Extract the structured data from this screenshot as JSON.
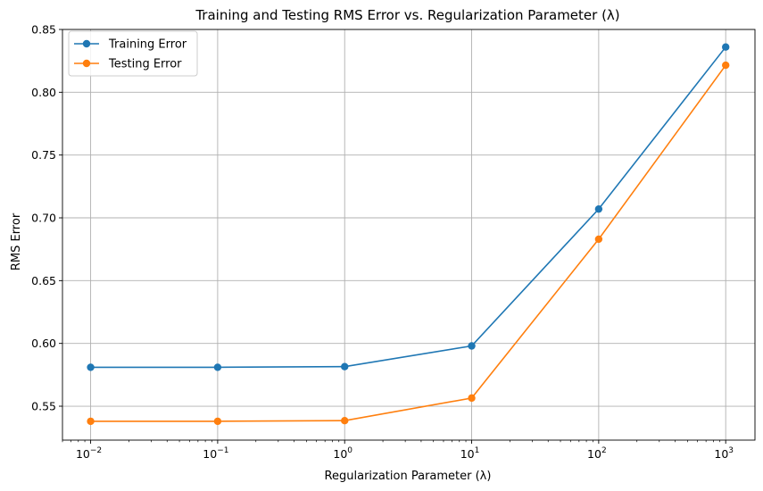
{
  "chart_data": {
    "type": "line",
    "title": "Training and Testing RMS Error vs. Regularization Parameter (λ)",
    "xlabel": "Regularization Parameter (λ)",
    "ylabel": "RMS Error",
    "xscale": "log",
    "x": [
      0.01,
      0.1,
      1,
      10,
      100,
      1000
    ],
    "xlim": [
      0.006,
      1700
    ],
    "ylim": [
      0.523,
      0.85
    ],
    "xticks": [
      {
        "value": 0.01,
        "base": "10",
        "exp": "−2"
      },
      {
        "value": 0.1,
        "base": "10",
        "exp": "−1"
      },
      {
        "value": 1,
        "base": "10",
        "exp": "0"
      },
      {
        "value": 10,
        "base": "10",
        "exp": "1"
      },
      {
        "value": 100,
        "base": "10",
        "exp": "2"
      },
      {
        "value": 1000,
        "base": "10",
        "exp": "3"
      }
    ],
    "yticks": [
      "0.55",
      "0.60",
      "0.65",
      "0.70",
      "0.75",
      "0.80",
      "0.85"
    ],
    "grid": true,
    "legend_position": "top-left",
    "series": [
      {
        "name": "Training Error",
        "color": "#1f77b4",
        "values": [
          0.581,
          0.581,
          0.5815,
          0.598,
          0.707,
          0.836
        ]
      },
      {
        "name": "Testing Error",
        "color": "#ff7f0e",
        "values": [
          0.538,
          0.538,
          0.5385,
          0.5565,
          0.683,
          0.8215
        ]
      }
    ]
  }
}
